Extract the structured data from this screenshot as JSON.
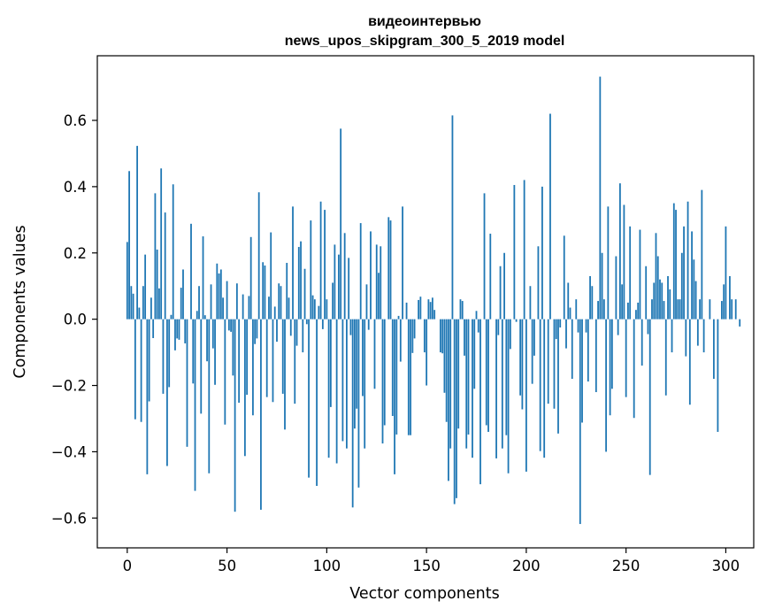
{
  "chart_data": {
    "type": "bar",
    "title_line1": "видеоинтервью",
    "title_line2": "news_upos_skipgram_300_5_2019 model",
    "xlabel": "Vector components",
    "ylabel": "Components values",
    "xlim": [
      -15,
      314
    ],
    "ylim": [
      -0.69,
      0.795
    ],
    "x_ticks": [
      0,
      50,
      100,
      150,
      200,
      250,
      300
    ],
    "y_ticks": [
      -0.6,
      -0.4,
      -0.2,
      0.0,
      0.2,
      0.4,
      0.6
    ],
    "y_tick_labels": [
      "−0.6",
      "−0.4",
      "−0.2",
      "0.0",
      "0.2",
      "0.4",
      "0.6"
    ],
    "grid": false,
    "bar_color": "#1f77b4",
    "values": [
      0.233,
      0.447,
      0.1,
      0.077,
      -0.302,
      0.523,
      0.035,
      -0.31,
      0.1,
      0.195,
      -0.468,
      -0.248,
      0.065,
      -0.057,
      0.38,
      0.21,
      0.093,
      0.455,
      -0.225,
      0.322,
      -0.443,
      -0.205,
      0.013,
      0.407,
      -0.094,
      -0.058,
      -0.062,
      0.095,
      0.15,
      -0.073,
      -0.385,
      0.0,
      0.288,
      -0.194,
      -0.518,
      0.025,
      0.1,
      -0.285,
      0.25,
      0.012,
      -0.127,
      -0.465,
      0.105,
      -0.088,
      -0.198,
      0.168,
      0.138,
      0.15,
      0.065,
      -0.318,
      0.115,
      -0.034,
      -0.038,
      -0.17,
      -0.581,
      0.108,
      -0.252,
      0.0,
      0.075,
      -0.413,
      -0.228,
      0.07,
      0.248,
      -0.29,
      -0.075,
      -0.058,
      0.383,
      -0.575,
      0.172,
      0.162,
      -0.235,
      0.068,
      0.262,
      -0.25,
      0.038,
      -0.068,
      0.108,
      0.1,
      -0.225,
      -0.333,
      0.17,
      0.065,
      -0.05,
      0.34,
      -0.255,
      -0.08,
      0.218,
      0.235,
      -0.1,
      0.152,
      -0.015,
      -0.478,
      0.298,
      0.072,
      0.06,
      -0.503,
      0.04,
      0.355,
      -0.03,
      0.33,
      0.06,
      -0.418,
      -0.265,
      0.11,
      0.225,
      -0.435,
      0.195,
      0.575,
      -0.368,
      0.26,
      -0.39,
      0.185,
      -0.048,
      -0.568,
      -0.33,
      -0.27,
      -0.508,
      0.29,
      -0.232,
      -0.39,
      0.105,
      -0.032,
      0.265,
      0.0,
      -0.21,
      0.225,
      0.14,
      0.22,
      -0.375,
      -0.32,
      0.0,
      0.308,
      0.298,
      -0.292,
      -0.468,
      -0.348,
      0.01,
      -0.128,
      0.34,
      0.0,
      0.05,
      -0.35,
      -0.35,
      -0.102,
      -0.058,
      0.0,
      0.058,
      0.068,
      0.0,
      -0.1,
      -0.2,
      0.06,
      0.052,
      0.065,
      0.028,
      0.0,
      0.0,
      -0.1,
      -0.103,
      -0.222,
      -0.31,
      -0.488,
      -0.39,
      0.615,
      -0.558,
      -0.54,
      -0.33,
      0.06,
      0.055,
      -0.11,
      -0.39,
      -0.348,
      0.0,
      -0.418,
      -0.21,
      0.025,
      -0.04,
      -0.498,
      0.0,
      0.38,
      -0.32,
      -0.34,
      0.258,
      0.0,
      0.0,
      -0.42,
      -0.048,
      0.16,
      -0.39,
      0.2,
      -0.35,
      -0.465,
      -0.09,
      0.0,
      0.405,
      -0.008,
      0.0,
      -0.23,
      -0.272,
      0.42,
      -0.46,
      0.0,
      0.1,
      -0.195,
      -0.11,
      0.0,
      0.22,
      -0.398,
      0.4,
      -0.418,
      0.0,
      -0.255,
      0.62,
      0.0,
      -0.27,
      -0.06,
      -0.345,
      -0.025,
      0.0,
      0.252,
      -0.088,
      0.11,
      0.035,
      -0.18,
      0.0,
      0.06,
      -0.04,
      -0.618,
      -0.312,
      0.0,
      -0.04,
      -0.188,
      0.13,
      0.1,
      0.0,
      -0.22,
      0.055,
      0.732,
      0.2,
      0.06,
      -0.4,
      0.34,
      -0.29,
      -0.21,
      0.0,
      0.19,
      -0.048,
      0.41,
      0.105,
      0.345,
      -0.235,
      0.05,
      0.28,
      0.0,
      -0.298,
      0.028,
      0.05,
      0.27,
      -0.14,
      0.0,
      0.16,
      -0.045,
      -0.47,
      0.06,
      0.11,
      0.26,
      0.19,
      0.12,
      0.11,
      0.055,
      -0.23,
      0.13,
      0.09,
      -0.1,
      0.35,
      0.33,
      0.06,
      0.06,
      0.2,
      0.28,
      -0.112,
      0.355,
      -0.258,
      0.265,
      0.18,
      0.115,
      -0.08,
      0.06,
      0.39,
      -0.1,
      0.0,
      0.0,
      0.06,
      0.0,
      -0.18,
      0.0,
      -0.34,
      0.0,
      0.055,
      0.105,
      0.28,
      0.0,
      0.13,
      0.06,
      0.0,
      0.06,
      0.0,
      -0.022
    ]
  }
}
